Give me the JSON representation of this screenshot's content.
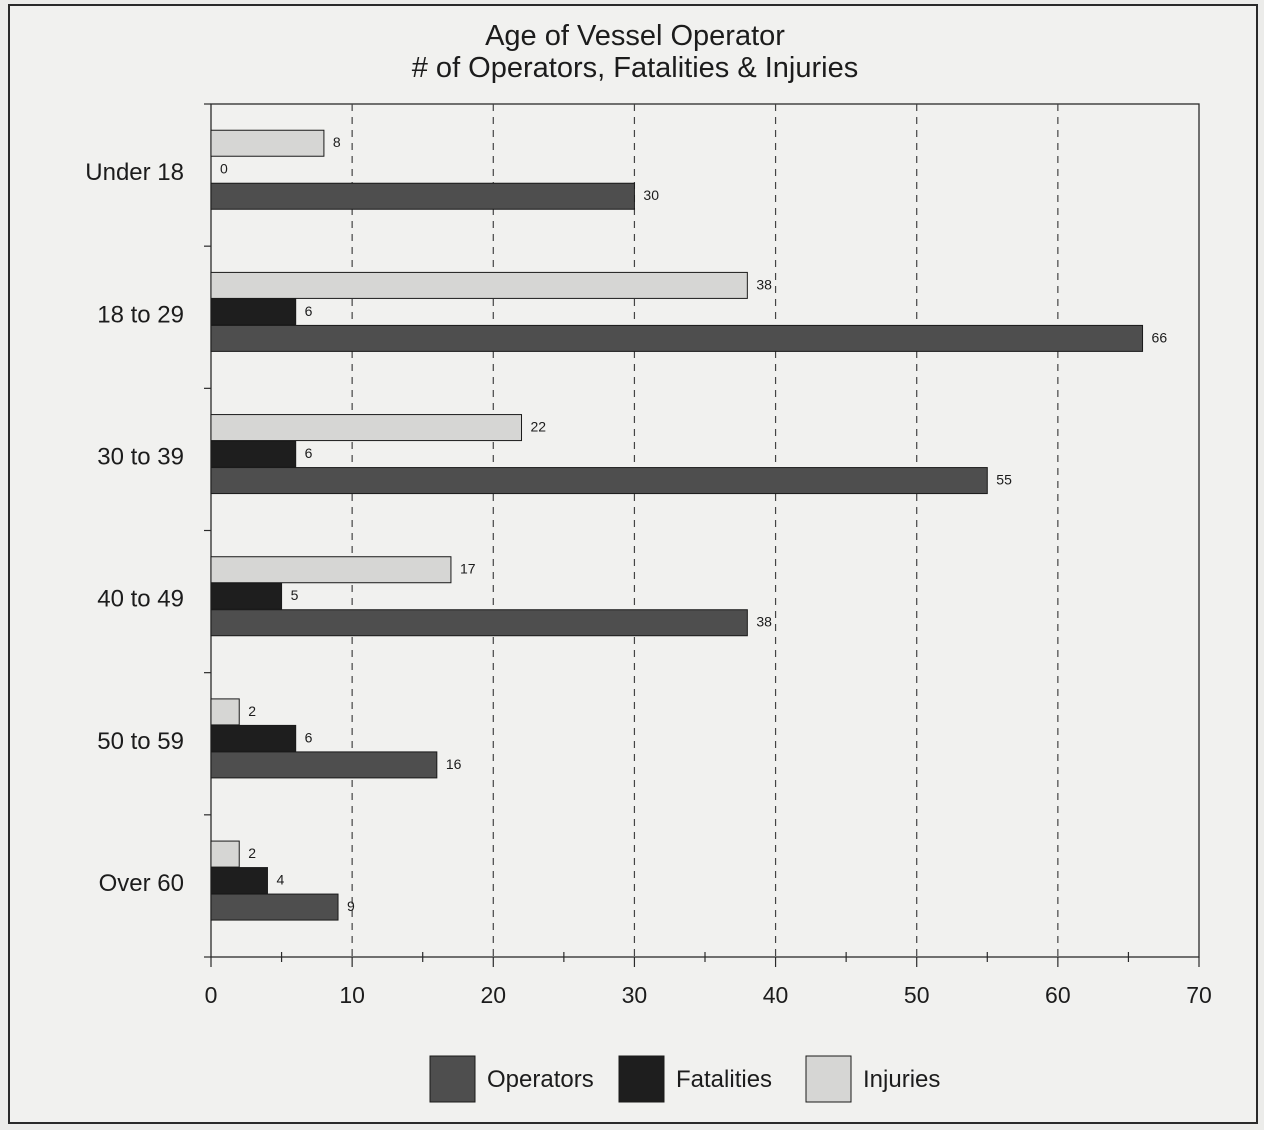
{
  "chart_data": {
    "type": "bar",
    "orientation": "horizontal",
    "title": "Age of Vessel Operator",
    "subtitle": "# of Operators, Fatalities & Injuries",
    "xlabel": "",
    "ylabel": "",
    "categories": [
      "Under 18",
      "18 to 29",
      "30 to 39",
      "40 to 49",
      "50 to 59",
      "Over 60"
    ],
    "series": [
      {
        "name": "Injuries",
        "values": [
          8,
          38,
          22,
          17,
          2,
          2
        ],
        "color": "#d6d6d4"
      },
      {
        "name": "Fatalities",
        "values": [
          0,
          6,
          6,
          5,
          6,
          4
        ],
        "color": "#1e1e1e"
      },
      {
        "name": "Operators",
        "values": [
          30,
          66,
          55,
          38,
          16,
          9
        ],
        "color": "#4e4e4e"
      }
    ],
    "xlim": [
      0,
      70
    ],
    "xticks": [
      0,
      10,
      20,
      30,
      40,
      50,
      60,
      70
    ],
    "gridlines": "vertical dashed",
    "legend": {
      "position": "bottom",
      "order": [
        "Operators",
        "Fatalities",
        "Injuries"
      ]
    }
  }
}
